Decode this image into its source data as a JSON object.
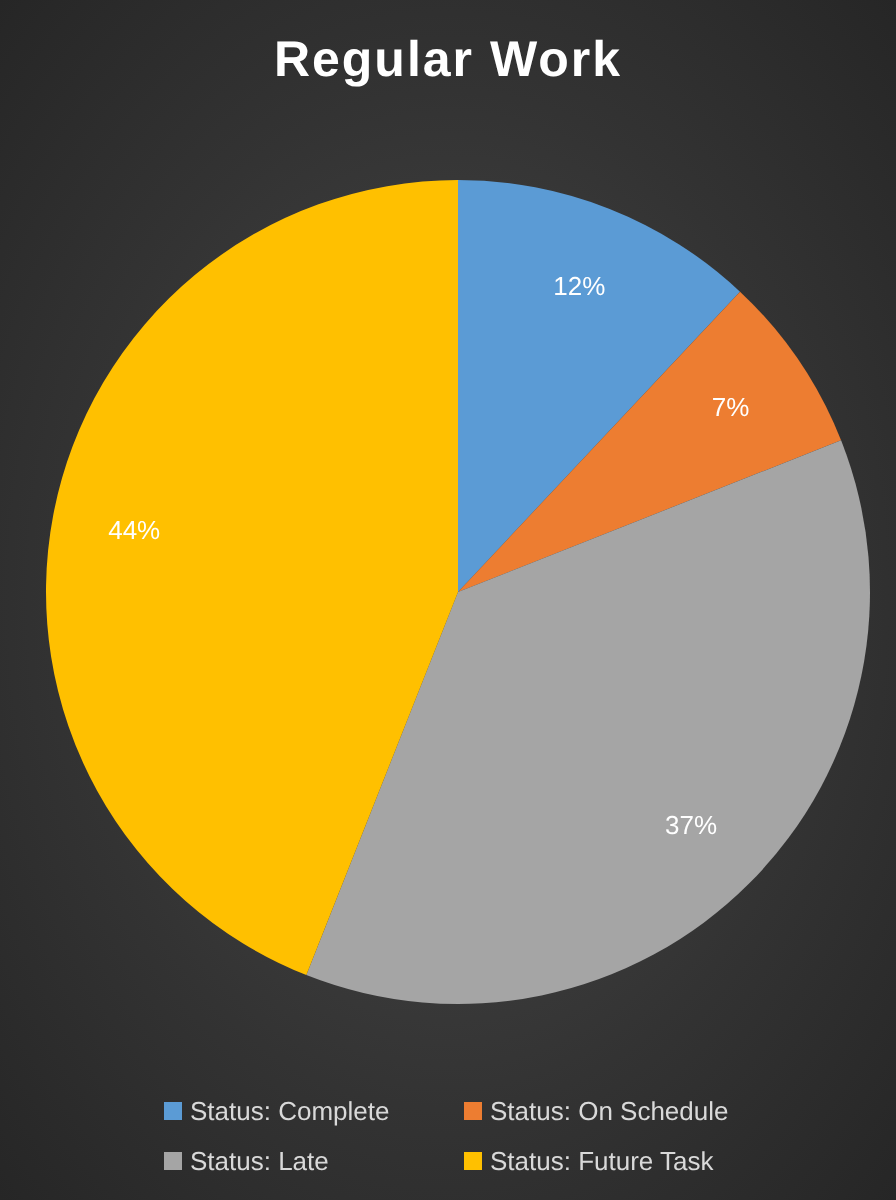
{
  "chart_data": {
    "type": "pie",
    "title": "Regular Work",
    "categories": [
      "Status: Complete",
      "Status: On Schedule",
      "Status: Late",
      "Status: Future Task"
    ],
    "values": [
      12,
      7,
      37,
      44
    ],
    "colors": [
      "#5b9bd5",
      "#ed7d31",
      "#a5a5a5",
      "#ffc000"
    ],
    "value_labels": [
      "12%",
      "7%",
      "37%",
      "44%"
    ],
    "legend": "bottom"
  }
}
